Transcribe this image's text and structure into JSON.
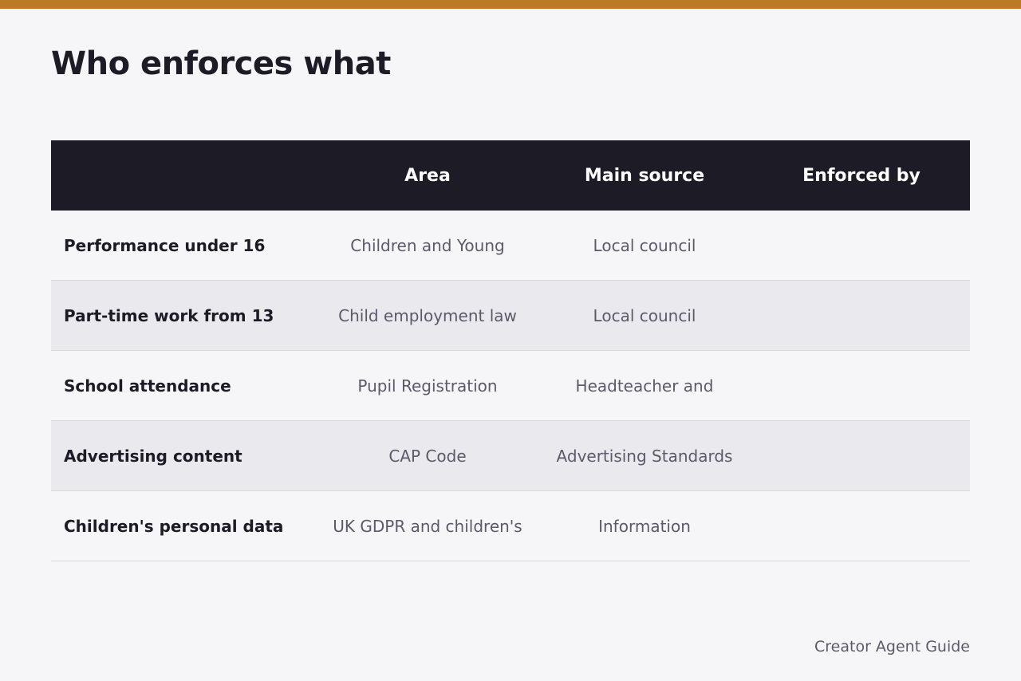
{
  "page": {
    "title": "Who enforces what",
    "footer": "Creator Agent Guide",
    "accent_color": "#bc7a26",
    "header_bg": "#1c1b26"
  },
  "table": {
    "headers": [
      "",
      "Area",
      "Main source",
      "Enforced by"
    ],
    "rows": [
      {
        "label": "Performance under 16",
        "area": "Children and Young",
        "main_source": "Local council",
        "enforced_by": ""
      },
      {
        "label": "Part-time work from 13",
        "area": "Child employment law",
        "main_source": "Local council",
        "enforced_by": ""
      },
      {
        "label": "School attendance",
        "area": "Pupil Registration",
        "main_source": "Headteacher and",
        "enforced_by": ""
      },
      {
        "label": "Advertising content",
        "area": "CAP Code",
        "main_source": "Advertising Standards",
        "enforced_by": ""
      },
      {
        "label": "Children's personal data",
        "area": "UK GDPR and children's",
        "main_source": "Information",
        "enforced_by": ""
      }
    ]
  }
}
